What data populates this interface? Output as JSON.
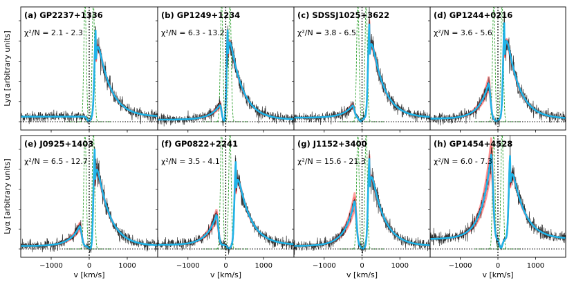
{
  "chart_data": [
    {
      "id": "a",
      "type": "line",
      "title": "(a) GP2237+1336",
      "annotation": "χ²/N = 2.1 - 2.3",
      "shape": "red_skewed",
      "xlabel": "",
      "ylabel": "Lyα [arbitrary units]",
      "xlim": [
        -1800,
        1800
      ],
      "xticks": [
        -1000,
        0,
        1000
      ],
      "xticklabels": [
        "",
        "",
        ""
      ],
      "series": [
        {
          "role": "data",
          "color": "#000000"
        },
        {
          "role": "model",
          "color": "#1fb4e8"
        },
        {
          "role": "model-envelope",
          "color": "#ff2a2a"
        },
        {
          "role": "intrinsic",
          "color": "#2ca02c",
          "style": "dashed"
        }
      ],
      "params": {
        "red_peak_v": 180,
        "blue_peak_v": 0,
        "blue_amp": 0.0,
        "red_amp": 0.9,
        "trough_v": -10,
        "bg": 0.05
      }
    },
    {
      "id": "b",
      "type": "line",
      "title": "(b) GP1249+1234",
      "annotation": "χ²/N = 6.3 - 13.2",
      "shape": "red_dominant",
      "xlabel": "",
      "ylabel": "",
      "xlim": [
        -1800,
        1800
      ],
      "xticks": [
        -1000,
        0,
        1000
      ],
      "xticklabels": [
        "",
        "",
        ""
      ],
      "params": {
        "red_peak_v": 50,
        "blue_peak_v": -150,
        "blue_amp": 0.15,
        "red_amp": 1.0,
        "trough_v": -40,
        "bg": 0.02
      }
    },
    {
      "id": "c",
      "type": "line",
      "title": "(c) SDSSJ1025+3622",
      "annotation": "χ²/N = 3.8 - 6.5",
      "shape": "double_peak",
      "xlabel": "",
      "ylabel": "",
      "xlim": [
        -1800,
        1800
      ],
      "xticks": [
        -1000,
        0,
        1000
      ],
      "xticklabels": [
        "",
        "",
        ""
      ],
      "params": {
        "red_peak_v": 200,
        "blue_peak_v": -250,
        "blue_amp": 0.12,
        "red_amp": 0.95,
        "trough_v": -30,
        "bg": 0.04
      }
    },
    {
      "id": "d",
      "type": "line",
      "title": "(d) GP1244+0216",
      "annotation": "χ²/N = 3.6 - 5.6",
      "shape": "double_peak",
      "xlabel": "",
      "ylabel": "",
      "xlim": [
        -1800,
        1800
      ],
      "xticks": [
        -1000,
        0,
        1000
      ],
      "xticklabels": [
        "",
        "",
        ""
      ],
      "params": {
        "red_peak_v": 180,
        "blue_peak_v": -250,
        "blue_amp": 0.35,
        "red_amp": 1.0,
        "trough_v": -40,
        "bg": 0.03
      }
    },
    {
      "id": "e",
      "type": "line",
      "title": "(e) J0925+1403",
      "annotation": "χ²/N = 6.5 - 12.7",
      "shape": "double_peak",
      "xlabel": "v [km/s]",
      "ylabel": "Lyα [arbitrary units]",
      "xlim": [
        -1800,
        1800
      ],
      "xticks": [
        -1000,
        0,
        1000
      ],
      "xticklabels": [
        "−1000",
        "0",
        "1000"
      ],
      "params": {
        "red_peak_v": 150,
        "blue_peak_v": -250,
        "blue_amp": 0.2,
        "red_amp": 1.0,
        "trough_v": 20,
        "bg": 0.03
      }
    },
    {
      "id": "f",
      "type": "line",
      "title": "(f) GP0822+2241",
      "annotation": "χ²/N = 3.5 - 4.1",
      "shape": "double_peak",
      "xlabel": "v [km/s]",
      "ylabel": "",
      "xlim": [
        -1800,
        1800
      ],
      "xticks": [
        -1000,
        0,
        1000
      ],
      "xticklabels": [
        "−1000",
        "0",
        "1000"
      ],
      "params": {
        "red_peak_v": 270,
        "blue_peak_v": -250,
        "blue_amp": 0.3,
        "red_amp": 0.85,
        "trough_v": 80,
        "bg": 0.04
      }
    },
    {
      "id": "g",
      "type": "line",
      "title": "(g) J1152+3400",
      "annotation": "χ²/N = 15.6 - 21.3",
      "shape": "double_peak",
      "xlabel": "v [km/s]",
      "ylabel": "",
      "xlim": [
        -1800,
        1800
      ],
      "xticks": [
        -1000,
        0,
        1000
      ],
      "xticklabels": [
        "−1000",
        "0",
        "1000"
      ],
      "params": {
        "red_peak_v": 200,
        "blue_peak_v": -200,
        "blue_amp": 0.45,
        "red_amp": 0.9,
        "trough_v": 20,
        "bg": 0.03
      }
    },
    {
      "id": "h",
      "type": "line",
      "title": "(h) GP1454+4528",
      "annotation": "χ²/N = 6.0 - 7.3",
      "shape": "double_peak",
      "xlabel": "v [km/s]",
      "ylabel": "",
      "xlim": [
        -1800,
        1800
      ],
      "xticks": [
        -1000,
        0,
        1000
      ],
      "xticklabels": [
        "−1000",
        "0",
        "1000"
      ],
      "params": {
        "red_peak_v": 330,
        "blue_peak_v": -180,
        "blue_amp": 0.85,
        "red_amp": 0.85,
        "trough_v": 80,
        "bg": 0.1
      }
    }
  ],
  "colors": {
    "data": "#111111",
    "model": "#1fb4e8",
    "envelope": "#ff2a2a",
    "intrinsic": "#2ca02c",
    "zero": "#000000"
  }
}
